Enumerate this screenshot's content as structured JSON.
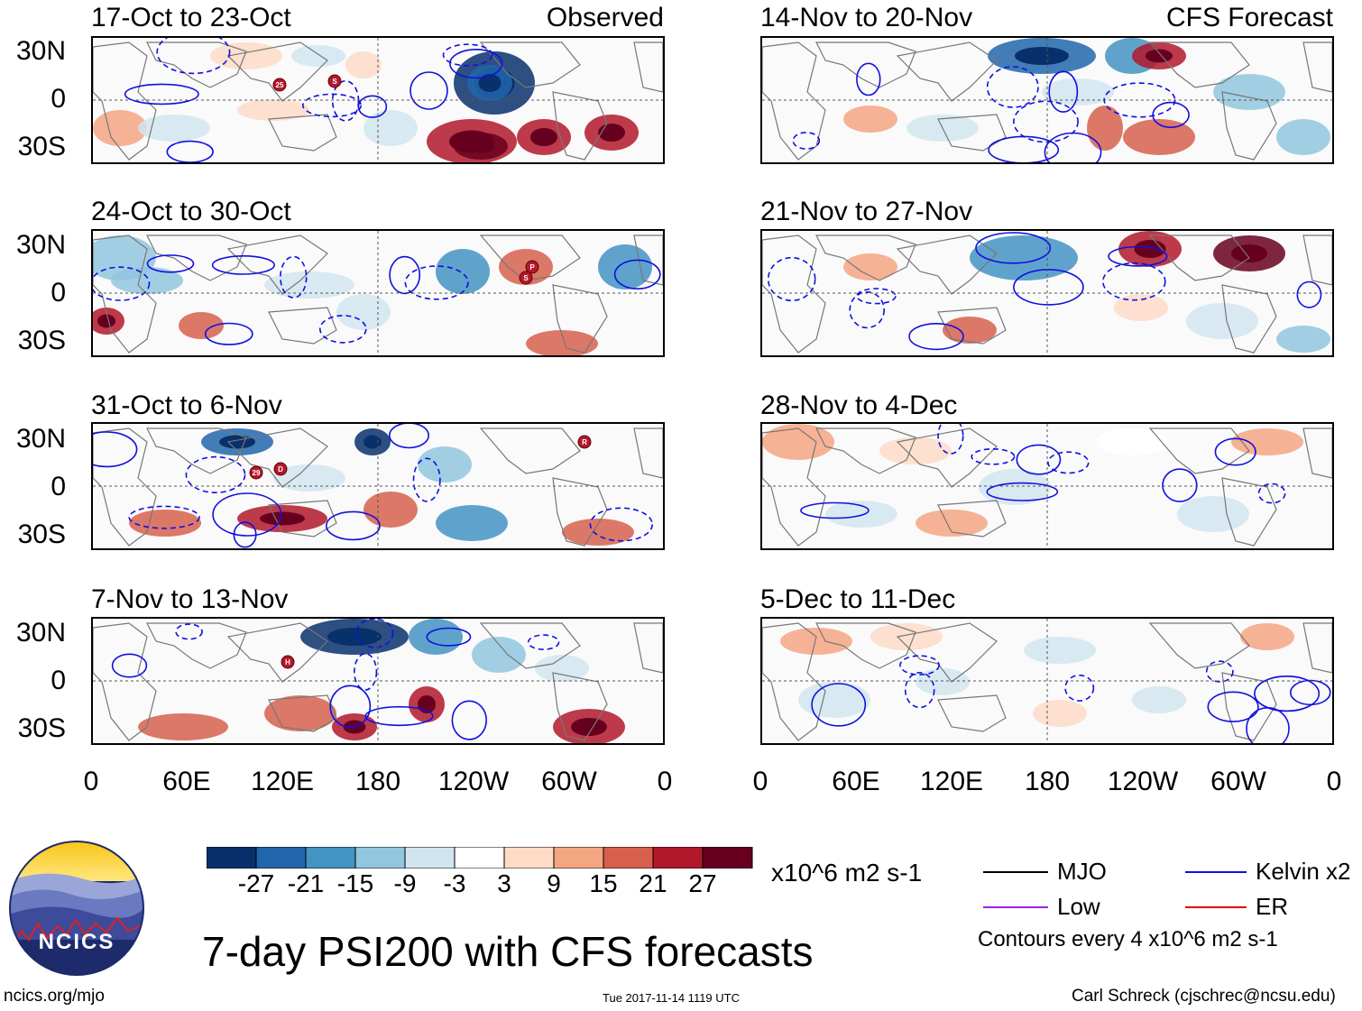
{
  "panels": [
    {
      "title": "17-Oct to 23-Oct",
      "tag": "Observed"
    },
    {
      "title": "24-Oct to 30-Oct",
      "tag": ""
    },
    {
      "title": "31-Oct to 6-Nov",
      "tag": ""
    },
    {
      "title": "7-Nov to 13-Nov",
      "tag": ""
    },
    {
      "title": "14-Nov to 20-Nov",
      "tag": "CFS Forecast"
    },
    {
      "title": "21-Nov to 27-Nov",
      "tag": ""
    },
    {
      "title": "28-Nov to 4-Dec",
      "tag": ""
    },
    {
      "title": "5-Dec to 11-Dec",
      "tag": ""
    }
  ],
  "lat_labels": [
    "30N",
    "0",
    "30S"
  ],
  "lon_labels": [
    "0",
    "60E",
    "120E",
    "180",
    "120W",
    "60W",
    "0"
  ],
  "colorbar": {
    "labels": [
      "-27",
      "-21",
      "-15",
      "-9",
      "-3",
      "3",
      "9",
      "15",
      "21",
      "27"
    ],
    "colors": [
      "#08306b",
      "#2166ac",
      "#4393c3",
      "#92c5de",
      "#d1e5f0",
      "#ffffff",
      "#fddbc7",
      "#f4a582",
      "#d6604d",
      "#b2182b",
      "#67001f"
    ],
    "units": "x10^6 m2 s-1"
  },
  "legend": {
    "items": [
      {
        "label": "MJO",
        "color": "#000000"
      },
      {
        "label": "Kelvin x2",
        "color": "#1010e0"
      },
      {
        "label": "Low",
        "color": "#a020f0"
      },
      {
        "label": "ER",
        "color": "#e00000"
      }
    ],
    "note": "Contours every 4 x10^6 m2 s-1"
  },
  "logo": {
    "text": "NCICS"
  },
  "main_title": "7-day PSI200 with CFS forecasts",
  "footer": {
    "url": "ncics.org/mjo",
    "timestamp": "Tue 2017-11-14 1119 UTC",
    "credit": "Carl Schreck (cjschrec@ncsu.edu)"
  },
  "storm_markers": [
    [
      {
        "label": "25"
      },
      {
        "label": "S"
      }
    ],
    [
      {
        "label": "P"
      },
      {
        "label": "S"
      }
    ],
    [
      {
        "label": "29"
      },
      {
        "label": "D"
      },
      {
        "label": "R"
      }
    ],
    [
      {
        "label": "H"
      }
    ],
    [],
    [],
    [],
    []
  ]
}
